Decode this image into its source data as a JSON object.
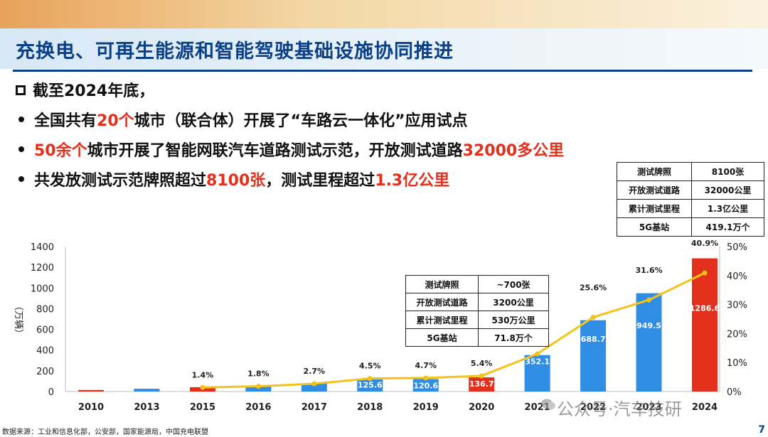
{
  "slide": {
    "title": "充换电、可再生能源和智能驾驶基础设施协同推进",
    "page_number": "7",
    "source_note": "数据来源：工业和信息化部，公安部，国家能源局，中国充电联盟",
    "watermark": "公众号·汽车技研"
  },
  "bullets": [
    {
      "segments": [
        {
          "text": "截至2024年底，",
          "hl": false
        }
      ]
    },
    {
      "segments": [
        {
          "text": "全国共有",
          "hl": false
        },
        {
          "text": "20个",
          "hl": true
        },
        {
          "text": "城市（联合体）开展了“车路云一体化”应用试点",
          "hl": false
        }
      ]
    },
    {
      "segments": [
        {
          "text": "50余个",
          "hl": true
        },
        {
          "text": "城市开展了智能网联汽车道路测试示范，开放测试道路",
          "hl": false
        },
        {
          "text": "32000多公里",
          "hl": true
        }
      ]
    },
    {
      "segments": [
        {
          "text": "共发放测试示范牌照超过",
          "hl": false
        },
        {
          "text": "8100张",
          "hl": true
        },
        {
          "text": "，测试里程超过",
          "hl": false
        },
        {
          "text": "1.3亿公里",
          "hl": true
        }
      ]
    }
  ],
  "table_2024": [
    {
      "k": "测试牌照",
      "v": "8100张"
    },
    {
      "k": "开放测试道路",
      "v": "32000公里"
    },
    {
      "k": "累计测试里程",
      "v": "1.3亿公里"
    },
    {
      "k": "5G基站",
      "v": "419.1万个"
    }
  ],
  "table_2020": [
    {
      "k": "测试牌照",
      "v": "~700张"
    },
    {
      "k": "开放测试道路",
      "v": "3200公里"
    },
    {
      "k": "累计测试里程",
      "v": "530万公里"
    },
    {
      "k": "5G基站",
      "v": "71.8万个"
    }
  ],
  "chart_data": {
    "type": "bar",
    "categories": [
      "2010",
      "2013",
      "2015",
      "2016",
      "2017",
      "2018",
      "2019",
      "2020",
      "2021",
      "2022",
      "2023",
      "2024"
    ],
    "series": [
      {
        "values": [
          15,
          27,
          42,
          50,
          78,
          125.6,
          120.6,
          136.7,
          352.1,
          688.7,
          949.5,
          1286.6
        ],
        "data_labels": [
          "",
          "",
          "",
          "",
          "",
          "125.6",
          "120.6",
          "136.7",
          "352.1",
          "688.7",
          "949.5",
          "1286.6"
        ],
        "bar_colors": [
          "#e2301d",
          "#2f8de4",
          "#e2301d",
          "#2f8de4",
          "#2f8de4",
          "#2f8de4",
          "#2f8de4",
          "#e2301d",
          "#2f8de4",
          "#2f8de4",
          "#2f8de4",
          "#e2301d"
        ],
        "axis": "left"
      },
      {
        "type": "line",
        "x": [
          "2015",
          "2016",
          "2017",
          "2018",
          "2019",
          "2020",
          "2021",
          "2022",
          "2023",
          "2024"
        ],
        "values": [
          1.4,
          1.8,
          2.7,
          4.5,
          4.7,
          5.4,
          13.0,
          25.6,
          31.6,
          40.9
        ],
        "data_labels": [
          "1.4%",
          "1.8%",
          "2.7%",
          "4.5%",
          "4.7%",
          "5.4%",
          "",
          "25.6%",
          "31.6%",
          "40.9%"
        ],
        "color": "#f4c21b",
        "axis": "right"
      }
    ],
    "ylabel": "（万辆）",
    "ylim": [
      0,
      1400
    ],
    "yticks": [
      0,
      200,
      400,
      600,
      800,
      1000,
      1200,
      1400
    ],
    "y2lim": [
      0,
      50
    ],
    "y2ticks": [
      "0%",
      "10%",
      "20%",
      "30%",
      "40%",
      "50%"
    ],
    "grid": false,
    "legend": "none"
  }
}
